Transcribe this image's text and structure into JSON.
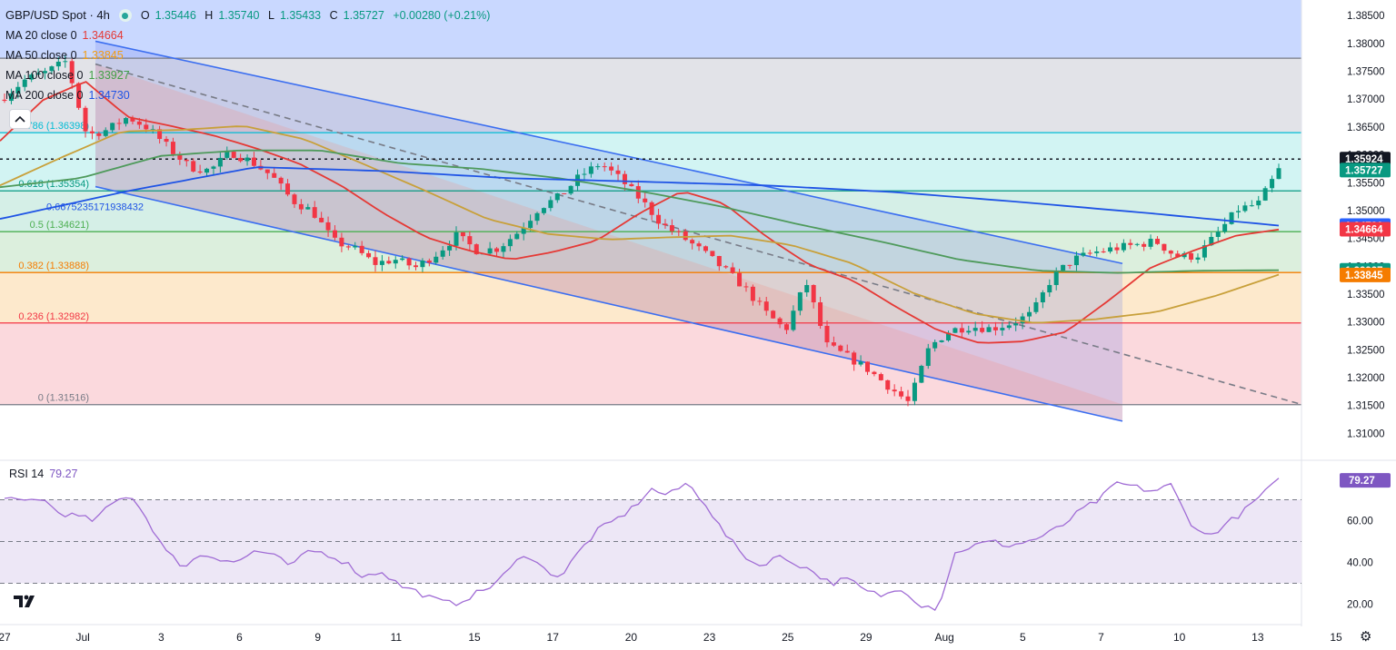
{
  "header": {
    "symbol_title": "GBP/USD Spot · 4h",
    "ohlc": {
      "o_key": "O",
      "o": "1.35446",
      "h_key": "H",
      "h": "1.35740",
      "l_key": "L",
      "l": "1.35433",
      "c_key": "C",
      "c": "1.35727",
      "change": "+0.00280 (+0.21%)"
    },
    "ma": [
      {
        "label": "MA 20 close 0",
        "value": "1.34664",
        "color": "#e53935"
      },
      {
        "label": "MA 50 close 0",
        "value": "1.33845",
        "color": "#f39c12"
      },
      {
        "label": "MA 100 close 0",
        "value": "1.33927",
        "color": "#43a047"
      },
      {
        "label": "MA 200 close 0",
        "value": "1.34730",
        "color": "#1e53e5"
      }
    ]
  },
  "rsi": {
    "label": "RSI 14",
    "value": "79.27",
    "color": "#7e57c2"
  },
  "icons": {
    "collapse": "chevron-up-icon",
    "logo": "tradingview-logo-icon",
    "settings": "gear-icon"
  },
  "chart_data": {
    "type": "candlestick",
    "y_axis": {
      "range": [
        1.3055,
        1.3878
      ],
      "ticks": [
        "1.38500",
        "1.38000",
        "1.37500",
        "1.37000",
        "1.36500",
        "1.36000",
        "1.35500",
        "1.35000",
        "1.34500",
        "1.34000",
        "1.33500",
        "1.33000",
        "1.32500",
        "1.32000",
        "1.31500",
        "1.31000"
      ]
    },
    "x_axis": {
      "labels": [
        "27",
        "Jul",
        "3",
        "6",
        "9",
        "11",
        "15",
        "17",
        "20",
        "23",
        "25",
        "29",
        "Aug",
        "5",
        "7",
        "10",
        "13",
        "15"
      ]
    },
    "fibonacci": [
      {
        "label": "0.786 (1.36398)",
        "value": 1.36398,
        "color": "#00bcd4"
      },
      {
        "label": "0.618 (1.35354)",
        "value": 1.35354,
        "color": "#089981"
      },
      {
        "label": "0.5 (1.34621)",
        "value": 1.34621,
        "color": "#4caf50"
      },
      {
        "label": "0.382 (1.33888)",
        "value": 1.33888,
        "color": "#f57c00"
      },
      {
        "label": "0.236 (1.32982)",
        "value": 1.32982,
        "color": "#f23645"
      },
      {
        "label": "0 (1.31516)",
        "value": 1.31516,
        "color": "#787b86"
      }
    ],
    "fib_extra_label": "0.6675235171938432",
    "price_labels": [
      {
        "text": "1.35924",
        "value": 1.35924,
        "bg": "#131722",
        "fg": "#ffffff"
      },
      {
        "text": "1.35727",
        "value": 1.35727,
        "bg": "#089981",
        "fg": "#ffffff"
      },
      {
        "text": "1.34730",
        "value": 1.3473,
        "bg": "#2962ff",
        "fg": "#ffffff"
      },
      {
        "text": "1.34664",
        "value": 1.34664,
        "bg": "#f23645",
        "fg": "#ffffff"
      },
      {
        "text": "1.33927",
        "value": 1.33927,
        "bg": "#089981",
        "fg": "#ffffff"
      },
      {
        "text": "1.33845",
        "value": 1.33845,
        "bg": "#f57c00",
        "fg": "#ffffff"
      }
    ],
    "ohlc_anchors": [
      1.3705,
      1.3735,
      1.3748,
      1.3768,
      1.3635,
      1.3645,
      1.3668,
      1.3648,
      1.3612,
      1.3578,
      1.3572,
      1.3605,
      1.3588,
      1.3562,
      1.3518,
      1.3498,
      1.3445,
      1.3432,
      1.3405,
      1.3412,
      1.3398,
      1.3422,
      1.3455,
      1.3428,
      1.3432,
      1.3462,
      1.3505,
      1.3525,
      1.3562,
      1.3585,
      1.3555,
      1.3518,
      1.3475,
      1.3452,
      1.3425,
      1.3395,
      1.3362,
      1.3318,
      1.3285,
      1.3372,
      1.3258,
      1.3238,
      1.3215,
      1.3185,
      1.3155,
      1.3255,
      1.3285,
      1.3292,
      1.3288,
      1.3298,
      1.3315,
      1.3382,
      1.3412,
      1.3425,
      1.3432,
      1.3438,
      1.3445,
      1.3418,
      1.3418,
      1.3458,
      1.3502,
      1.3512,
      1.3573
    ],
    "ma_anchors": {
      "ma20": [
        1.3625,
        1.3698,
        1.3732,
        1.3668,
        1.3652,
        1.3635,
        1.3612,
        1.3585,
        1.3545,
        1.3495,
        1.3452,
        1.3428,
        1.3412,
        1.3426,
        1.3446,
        1.3495,
        1.3535,
        1.3512,
        1.3452,
        1.3402,
        1.3375,
        1.3328,
        1.3285,
        1.3262,
        1.3265,
        1.3282,
        1.3338,
        1.3398,
        1.3428,
        1.3455,
        1.3466
      ],
      "ma50": [
        1.3545,
        1.3595,
        1.3642,
        1.3645,
        1.3652,
        1.3628,
        1.3582,
        1.3535,
        1.3485,
        1.3458,
        1.3448,
        1.3452,
        1.3455,
        1.3438,
        1.3405,
        1.3352,
        1.3315,
        1.3298,
        1.3305,
        1.3318,
        1.3348,
        1.3385
      ],
      "ma100": [
        1.3542,
        1.3558,
        1.3598,
        1.3608,
        1.3608,
        1.3585,
        1.3575,
        1.3558,
        1.3535,
        1.3508,
        1.3475,
        1.3445,
        1.3412,
        1.3392,
        1.3388,
        1.3392,
        1.3393
      ],
      "ma200": [
        1.3485,
        1.3535,
        1.3578,
        1.3571,
        1.3558,
        1.3552,
        1.3545,
        1.3533,
        1.3515,
        1.3495,
        1.3473
      ]
    },
    "channel": {
      "upper": [
        1.3804,
        1.3405
      ],
      "lower": [
        1.3543,
        1.3122
      ],
      "mid": [
        1.3763,
        1.3152
      ]
    },
    "rsi_data": {
      "y_range": [
        12,
        88
      ],
      "ticks": [
        "60.00",
        "40.00",
        "20.00"
      ],
      "levels": [
        70,
        50,
        30
      ],
      "anchors": [
        70,
        69,
        71,
        64,
        62,
        60,
        68,
        73,
        60,
        45,
        38,
        44,
        42,
        40,
        46,
        43,
        38,
        46,
        44,
        40,
        33,
        36,
        29,
        26,
        22,
        20,
        24,
        28,
        35,
        45,
        37,
        33,
        45,
        55,
        60,
        66,
        75,
        72,
        78,
        69,
        55,
        45,
        38,
        43,
        40,
        36,
        30,
        32,
        26,
        24,
        28,
        20,
        18,
        45,
        48,
        50,
        48,
        50,
        53,
        58,
        65,
        70,
        78,
        76,
        74,
        77,
        60,
        52,
        58,
        64,
        72,
        79
      ]
    },
    "last_price_line": 1.35924
  }
}
